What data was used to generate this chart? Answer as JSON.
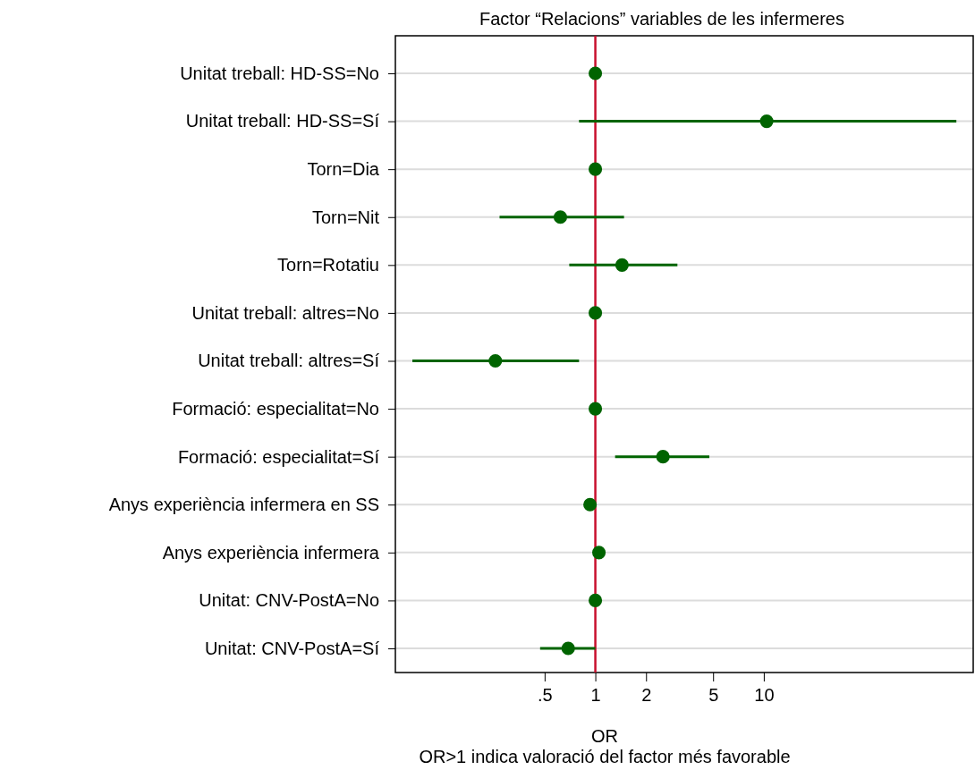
{
  "chart_data": {
    "type": "scatter",
    "orientation": "horizontal",
    "title": "Factor “Relacions” variables de les infermeres",
    "xlabel": "OR",
    "annotations": [
      "OR>1 indica valoració del factor més favorable"
    ],
    "categories": [
      "Unitat treball: HD-SS=No",
      "Unitat treball: HD-SS=Sí",
      "Torn=Dia",
      "Torn=Nit",
      "Torn=Rotatiu",
      "Unitat treball: altres=No",
      "Unitat treball: altres=Sí",
      "Formació: especialitat=No",
      "Formació: especialitat=Sí",
      "Anys experiència infermera en SS",
      "Anys experiència infermera",
      "Unitat: CNV-PostA=No",
      "Unitat: CNV-PostA=Sí"
    ],
    "series": [
      {
        "color": "#006400",
        "values": [
          1,
          10.4,
          1,
          0.62,
          1.44,
          1,
          0.255,
          1,
          2.52,
          0.93,
          1.05,
          1,
          0.69
        ],
        "errors": [
          null,
          [
            0.8,
            139
          ],
          null,
          [
            0.27,
            1.48
          ],
          [
            0.7,
            3.07
          ],
          null,
          [
            0.082,
            0.8
          ],
          null,
          [
            1.31,
            4.75
          ],
          null,
          null,
          null,
          [
            0.47,
            1
          ]
        ]
      }
    ],
    "log": "x",
    "xlim": [
      0.065,
      175
    ],
    "xticks": [
      {
        "value": 0.5,
        "label": ".5"
      },
      1,
      2,
      5,
      10
    ],
    "ref_lines": [
      {
        "axis": "x",
        "value": 1,
        "color": "#c8102e"
      }
    ],
    "grid": "y",
    "marker": "circle"
  }
}
